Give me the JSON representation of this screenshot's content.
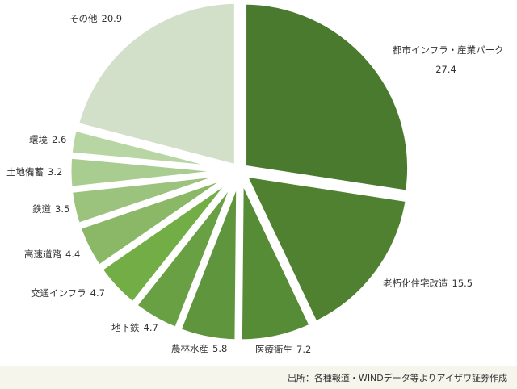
{
  "chart_data": {
    "type": "pie",
    "title": "",
    "slices": [
      {
        "label": "都市インフラ・産業パーク",
        "value": 27.4,
        "color": "#4a7a2e"
      },
      {
        "label": "老朽化住宅改造",
        "value": 15.5,
        "color": "#4f8131"
      },
      {
        "label": "医療衛生",
        "value": 7.2,
        "color": "#578c37"
      },
      {
        "label": "農林水産",
        "value": 5.8,
        "color": "#5f963d"
      },
      {
        "label": "地下鉄",
        "value": 4.7,
        "color": "#69a043"
      },
      {
        "label": "交通インフラ",
        "value": 4.7,
        "color": "#72ad45"
      },
      {
        "label": "高速道路",
        "value": 4.4,
        "color": "#8bb867"
      },
      {
        "label": "鉄道",
        "value": 3.5,
        "color": "#9bc37d"
      },
      {
        "label": "土地備蓄",
        "value": 3.2,
        "color": "#a9cc90"
      },
      {
        "label": "環境",
        "value": 2.6,
        "color": "#b8d5a4"
      },
      {
        "label": "その他",
        "value": 20.9,
        "color": "#d3e0c9"
      }
    ]
  },
  "source": "出所：各種報道・WINDデータ等よりアイザワ証券作成"
}
